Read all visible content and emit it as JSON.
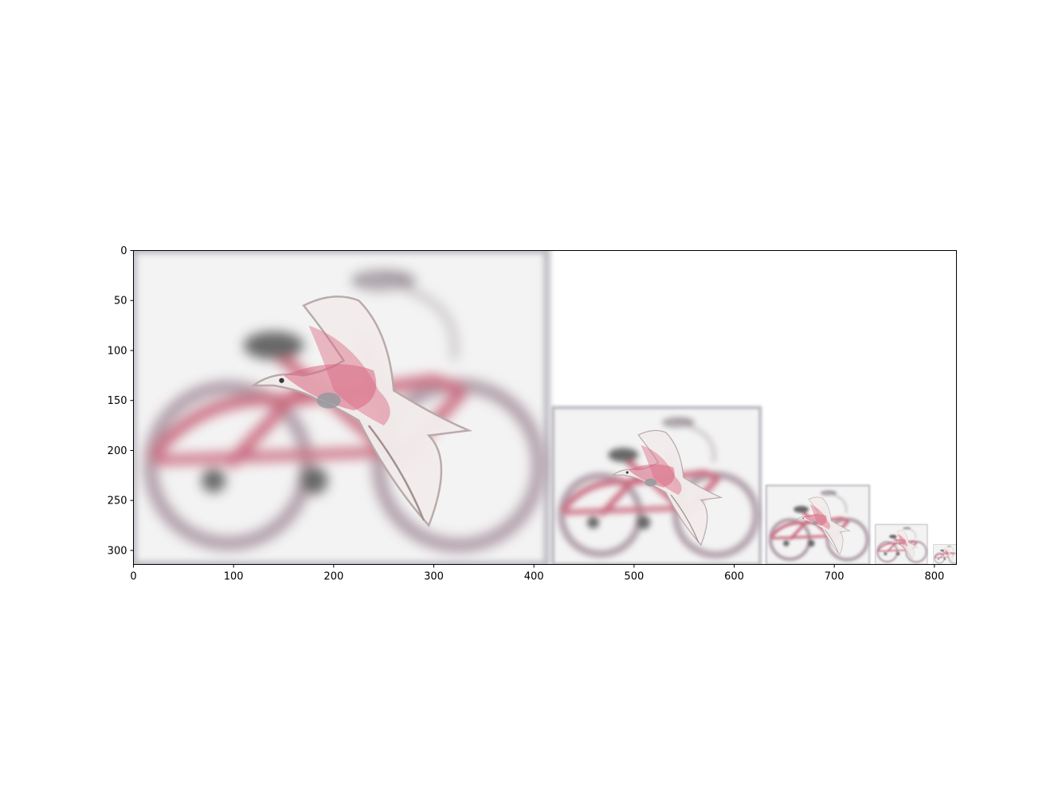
{
  "chart_data": {
    "type": "image",
    "description_free": true,
    "xlim": [
      0,
      822
    ],
    "ylim": [
      314,
      0
    ],
    "x_ticks": [
      0,
      100,
      200,
      300,
      400,
      500,
      600,
      700,
      800
    ],
    "y_ticks": [
      0,
      50,
      100,
      150,
      200,
      250,
      300
    ],
    "images": [
      {
        "level": 0,
        "x": 0,
        "y": 0,
        "w": 413,
        "h": 314
      },
      {
        "level": 1,
        "x": 419,
        "y": 157,
        "w": 207,
        "h": 157
      },
      {
        "level": 2,
        "x": 632,
        "y": 235,
        "w": 103,
        "h": 79
      },
      {
        "level": 3,
        "x": 741,
        "y": 274,
        "w": 52,
        "h": 40
      },
      {
        "level": 4,
        "x": 799,
        "y": 294,
        "w": 26,
        "h": 20
      }
    ]
  },
  "colors": {
    "background": "#f3f3f3",
    "bike_red": "#c3546d",
    "tire_gray": "#a08c97",
    "dark_gray": "#505050",
    "bird_white": "#f2ecec",
    "bird_pink": "#d9667f",
    "frame": "#000000"
  }
}
